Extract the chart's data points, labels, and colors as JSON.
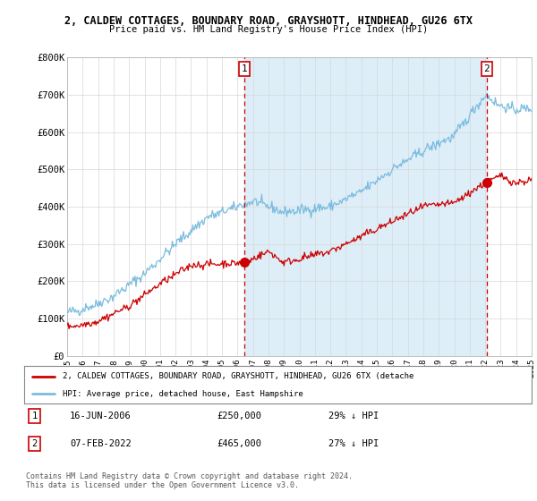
{
  "title_line1": "2, CALDEW COTTAGES, BOUNDARY ROAD, GRAYSHOTT, HINDHEAD, GU26 6TX",
  "title_line2": "Price paid vs. HM Land Registry's House Price Index (HPI)",
  "x_start_year": 1995,
  "x_end_year": 2025,
  "y_min": 0,
  "y_max": 800000,
  "y_ticks": [
    0,
    100000,
    200000,
    300000,
    400000,
    500000,
    600000,
    700000,
    800000
  ],
  "y_tick_labels": [
    "£0",
    "£100K",
    "£200K",
    "£300K",
    "£400K",
    "£500K",
    "£600K",
    "£700K",
    "£800K"
  ],
  "hpi_color": "#7bbcde",
  "price_color": "#cc0000",
  "vline_color": "#cc0000",
  "fill_color": "#ddeef8",
  "sale1_year": 2006.46,
  "sale1_price": 250000,
  "sale1_label": "1",
  "sale2_year": 2022.09,
  "sale2_price": 465000,
  "sale2_label": "2",
  "legend_entry1": "2, CALDEW COTTAGES, BOUNDARY ROAD, GRAYSHOTT, HINDHEAD, GU26 6TX (detache",
  "legend_entry2": "HPI: Average price, detached house, East Hampshire",
  "table_row1_num": "1",
  "table_row1_date": "16-JUN-2006",
  "table_row1_price": "£250,000",
  "table_row1_hpi": "29% ↓ HPI",
  "table_row2_num": "2",
  "table_row2_date": "07-FEB-2022",
  "table_row2_price": "£465,000",
  "table_row2_hpi": "27% ↓ HPI",
  "footer": "Contains HM Land Registry data © Crown copyright and database right 2024.\nThis data is licensed under the Open Government Licence v3.0.",
  "background_color": "#ffffff",
  "grid_color": "#d8d8d8"
}
